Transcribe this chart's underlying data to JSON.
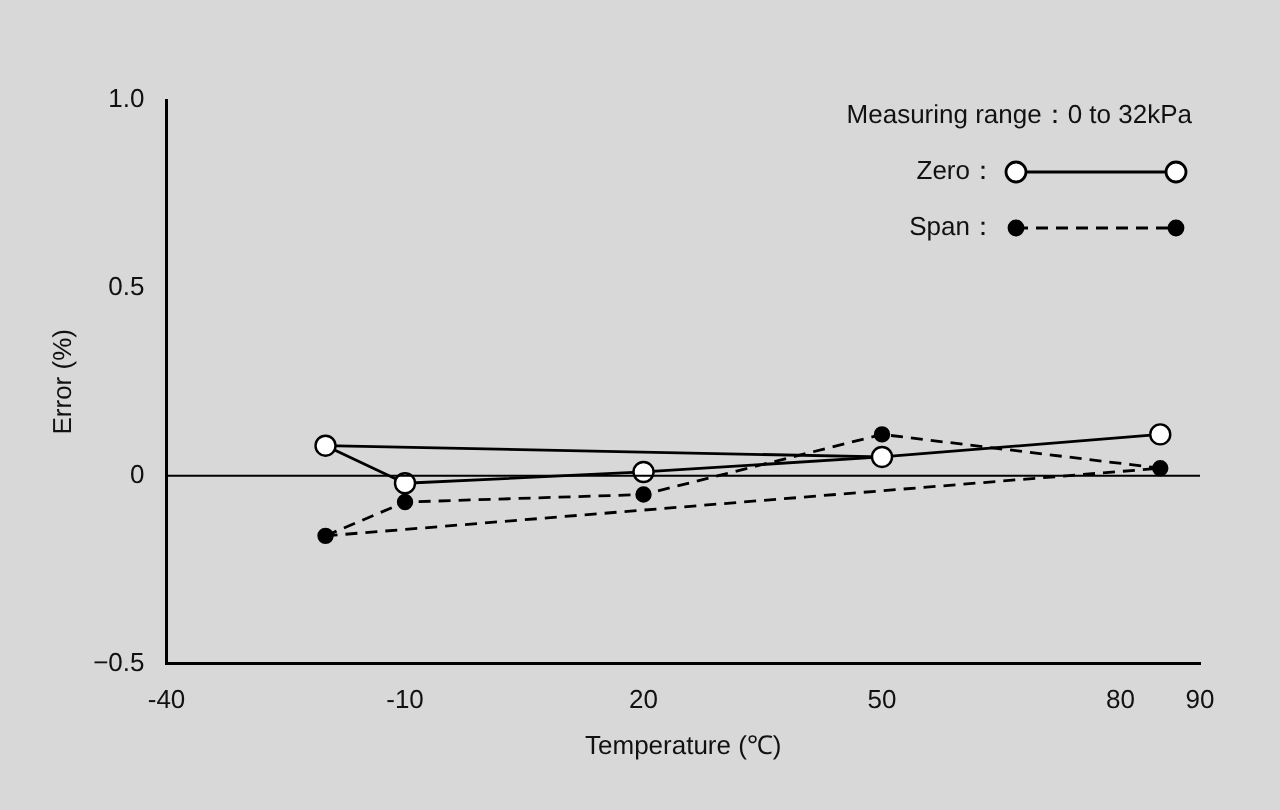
{
  "chart_data": {
    "type": "line",
    "xlabel": "Temperature (℃)",
    "ylabel": "Error (%)",
    "xlim": [
      -40,
      90
    ],
    "xticks": [
      -40,
      -10,
      20,
      50,
      80,
      90
    ],
    "ylim": [
      -0.5,
      1.0
    ],
    "yticks": [
      {
        "value": 1.0,
        "label": "1.0"
      },
      0.5,
      0,
      {
        "value": -0.5,
        "label": "−0.5"
      }
    ],
    "grid": false,
    "legend": "top right",
    "annotations": [
      "Measuring range：0 to 32kPa"
    ],
    "ref_lines": [
      {
        "axis": "y",
        "value": 0,
        "color": "#000000"
      }
    ],
    "series": [
      {
        "name": "Zero：",
        "color": "#000000",
        "marker": "circle",
        "line_style": "solid",
        "x": [
          -20,
          -10,
          20,
          50,
          85
        ],
        "values": [
          0.08,
          -0.02,
          0.01,
          0.05,
          0.11
        ]
      },
      {
        "name": "Span：",
        "color": "#000000",
        "marker": "circle",
        "line_style": "dashed",
        "x": [
          -20,
          -10,
          20,
          50,
          85
        ],
        "values": [
          -0.16,
          -0.07,
          -0.05,
          0.11,
          0.02
        ]
      },
      {
        "color": "#000000",
        "marker": "none",
        "line_style": "solid",
        "x": [
          -20,
          50
        ],
        "values": [
          0.08,
          0.05
        ]
      },
      {
        "color": "#000000",
        "marker": "none",
        "line_style": "dashed",
        "x": [
          -20,
          85
        ],
        "values": [
          -0.16,
          0.02
        ]
      }
    ]
  }
}
